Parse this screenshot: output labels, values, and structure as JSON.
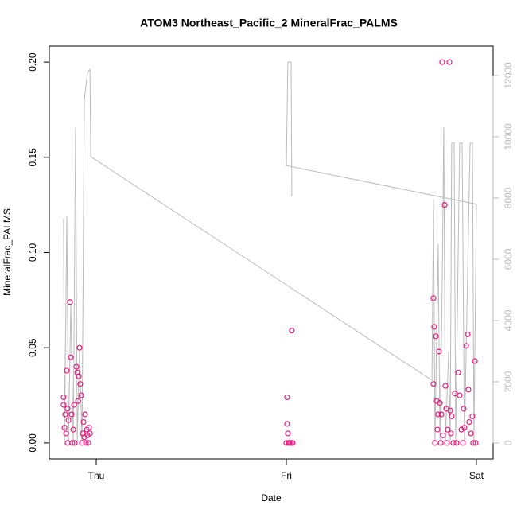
{
  "chart_data": {
    "type": "scatter",
    "title": "ATOM3 Northeast_Pacific_2 MineralFrac_PALMS",
    "x_label": "Date",
    "y_label": "MineralFrac_PALMS",
    "xlim": [
      -0.247,
      2.088
    ],
    "xticks": [
      {
        "value": 0,
        "label": "Thu"
      },
      {
        "value": 1,
        "label": "Fri"
      },
      {
        "value": 2,
        "label": "Sat"
      }
    ],
    "ylim": [
      -0.0084,
      0.2084
    ],
    "yticks": [
      {
        "value": 0,
        "label": "0.00"
      },
      {
        "value": 0.05,
        "label": "0.05"
      },
      {
        "value": 0.1,
        "label": "0.10"
      },
      {
        "value": 0.15,
        "label": "0.15"
      },
      {
        "value": 0.2,
        "label": "0.20"
      }
    ],
    "y2lim": [
      -520,
      12960
    ],
    "y2ticks": [
      0,
      2000,
      4000,
      6000,
      8000,
      10000,
      12000
    ],
    "y2_color": "#bbbbbb",
    "series": [
      {
        "color": "#e8197d",
        "x": [
          -0.172,
          -0.172,
          -0.167,
          -0.163,
          -0.159,
          -0.155,
          -0.151,
          -0.146,
          -0.138,
          -0.134,
          -0.13,
          -0.126,
          -0.121,
          -0.113,
          -0.105,
          -0.1,
          -0.096,
          -0.092,
          -0.088,
          -0.084,
          -0.079,
          -0.075,
          -0.071,
          -0.067,
          -0.063,
          -0.059,
          -0.05,
          -0.046,
          -0.042,
          -0.038,
          -0.033,
          -0.151,
          -0.117,
          -0.054,
          1.0,
          1.004,
          1.004,
          1.008,
          1.013,
          1.017,
          1.025,
          1.029,
          1.033,
          1.774,
          1.774,
          1.778,
          1.782,
          1.787,
          1.791,
          1.795,
          1.799,
          1.803,
          1.808,
          1.812,
          1.816,
          1.82,
          1.824,
          1.833,
          1.837,
          1.841,
          1.845,
          1.849,
          1.858,
          1.862,
          1.866,
          1.87,
          1.879,
          1.887,
          1.895,
          1.904,
          1.912,
          1.921,
          1.929,
          1.933,
          1.937,
          1.946,
          1.954,
          1.958,
          1.962,
          1.971,
          1.979,
          1.983,
          1.992,
          1.996
        ],
        "values": [
          0.024,
          0.02,
          0.008,
          0.015,
          0.005,
          0.038,
          0,
          0.012,
          0.074,
          0.045,
          0.015,
          0,
          0.007,
          0,
          0.04,
          0.037,
          0.022,
          0.035,
          0.05,
          0.031,
          0.025,
          0,
          0.005,
          0.011,
          0.003,
          0.015,
          0.007,
          0.004,
          0,
          0.008,
          0.005,
          0.018,
          0.02,
          0,
          0,
          0.01,
          0.024,
          0.005,
          0,
          0,
          0,
          0.059,
          0,
          0.076,
          0.031,
          0.061,
          0,
          0.056,
          0.022,
          0.007,
          0.015,
          0.048,
          0.021,
          0,
          0.015,
          0.2,
          0.004,
          0.125,
          0.03,
          0.018,
          0,
          0.007,
          0.2,
          0.017,
          0.005,
          0.014,
          0,
          0.026,
          0,
          0.037,
          0.025,
          0.007,
          0,
          0.018,
          0.008,
          0.051,
          0.057,
          0.028,
          0.011,
          0.005,
          0.014,
          0,
          0.043,
          0
        ]
      },
      {
        "type": "line",
        "axis": "y2",
        "color": "#bbbbbb",
        "x": [
          -0.172,
          -0.167,
          -0.155,
          -0.146,
          -0.134,
          -0.121,
          -0.109,
          -0.1,
          -0.088,
          -0.075,
          -0.063,
          -0.054,
          -0.046,
          -0.033,
          -0.029,
          1.766,
          1.774,
          1.782,
          1.799,
          1.808,
          1.82,
          1.828,
          1.837,
          1.854,
          1.862,
          1.87,
          1.883,
          1.891,
          1.912,
          1.925,
          1.937,
          1.967,
          1.979,
          1.987,
          2.0,
          1.0,
          1.008,
          1.025,
          1.029
        ],
        "values": [
          7320,
          50,
          7400,
          50,
          4500,
          50,
          10300,
          50,
          3000,
          50,
          11200,
          11700,
          12100,
          12200,
          9350,
          2050,
          7970,
          50,
          6500,
          50,
          5200,
          10300,
          50,
          3000,
          50,
          9800,
          9800,
          50,
          9800,
          9800,
          50,
          9800,
          9800,
          50,
          7800,
          9060,
          12440,
          12440,
          8050
        ]
      }
    ]
  }
}
